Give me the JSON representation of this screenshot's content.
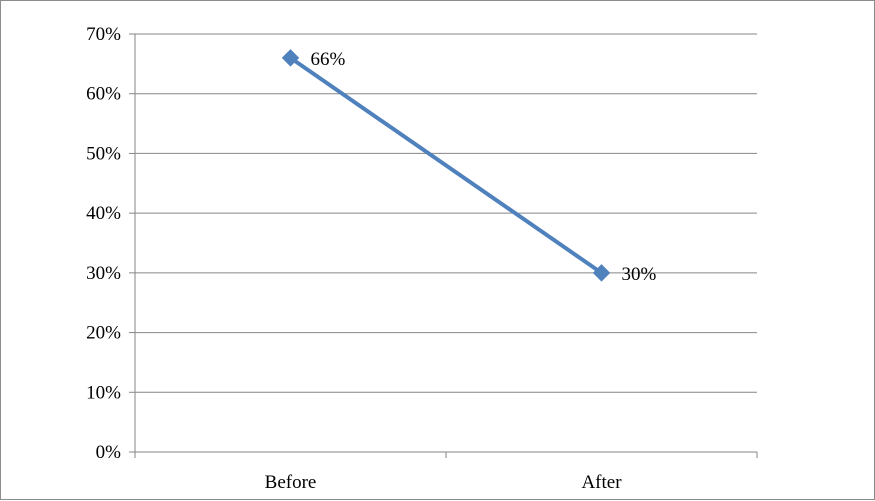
{
  "chart_data": {
    "type": "line",
    "categories": [
      "Before",
      "After"
    ],
    "series": [
      {
        "values": [
          66,
          30
        ],
        "color": "#4f81bd",
        "marker": "diamond"
      }
    ],
    "data_labels": [
      "66%",
      "30%"
    ],
    "y_ticks": [
      "0%",
      "10%",
      "20%",
      "30%",
      "40%",
      "50%",
      "60%",
      "70%"
    ],
    "ylim": [
      0,
      70
    ],
    "y_unit": "%",
    "grid": "horizontal",
    "legend": "none"
  }
}
